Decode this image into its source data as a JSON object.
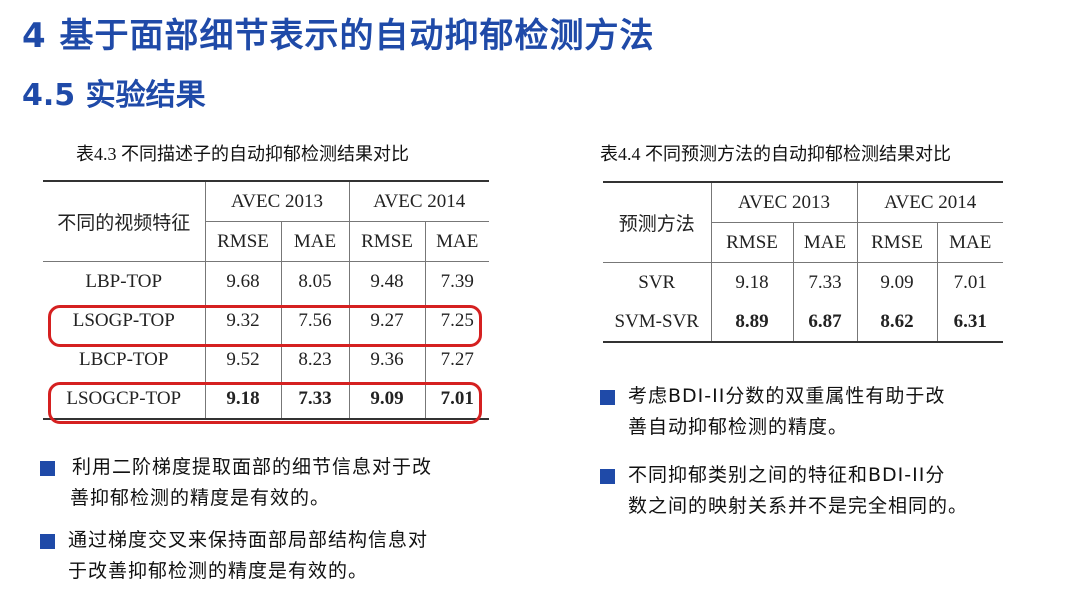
{
  "heading": "4 基于面部细节表示的自动抑郁检测方法",
  "subheading": "4.5 实验结果",
  "table1": {
    "caption": "表4.3 不同描述子的自动抑郁检测结果对比",
    "row_header": "不同的视频特征",
    "group1": "AVEC 2013",
    "group2": "AVEC 2014",
    "cols": [
      "RMSE",
      "MAE",
      "RMSE",
      "MAE"
    ],
    "rows": [
      {
        "name": "LBP-TOP",
        "v": [
          "9.68",
          "8.05",
          "9.48",
          "7.39"
        ]
      },
      {
        "name": "LSOGP-TOP",
        "v": [
          "9.32",
          "7.56",
          "9.27",
          "7.25"
        ]
      },
      {
        "name": "LBCP-TOP",
        "v": [
          "9.52",
          "8.23",
          "9.36",
          "7.27"
        ]
      },
      {
        "name": "LSOGCP-TOP",
        "v": [
          "9.18",
          "7.33",
          "9.09",
          "7.01"
        ]
      }
    ]
  },
  "table2": {
    "caption": "表4.4 不同预测方法的自动抑郁检测结果对比",
    "row_header": "预测方法",
    "group1": "AVEC 2013",
    "group2": "AVEC 2014",
    "cols": [
      "RMSE",
      "MAE",
      "RMSE",
      "MAE"
    ],
    "rows": [
      {
        "name": "SVR",
        "v": [
          "9.18",
          "7.33",
          "9.09",
          "7.01"
        ]
      },
      {
        "name": "SVM-SVR",
        "v": [
          "8.89",
          "6.87",
          "8.62",
          "6.31"
        ]
      }
    ]
  },
  "bullets_left": [
    {
      "l1": "利用二阶梯度提取面部的细节信息对于改",
      "l2": "善抑郁检测的精度是有效的。"
    },
    {
      "l1": "通过梯度交叉来保持面部局部结构信息对",
      "l2": "于改善抑郁检测的精度是有效的。"
    }
  ],
  "bullets_right": [
    {
      "l1": "考虑BDI-II分数的双重属性有助于改",
      "l2": "善自动抑郁检测的精度。"
    },
    {
      "l1": "不同抑郁类别之间的特征和BDI-II分",
      "l2": "数之间的映射关系并不是完全相同的。"
    }
  ],
  "colors": {
    "title": "#1f4aa8",
    "highlight": "#d52020",
    "bullet": "#1f4aa8"
  }
}
